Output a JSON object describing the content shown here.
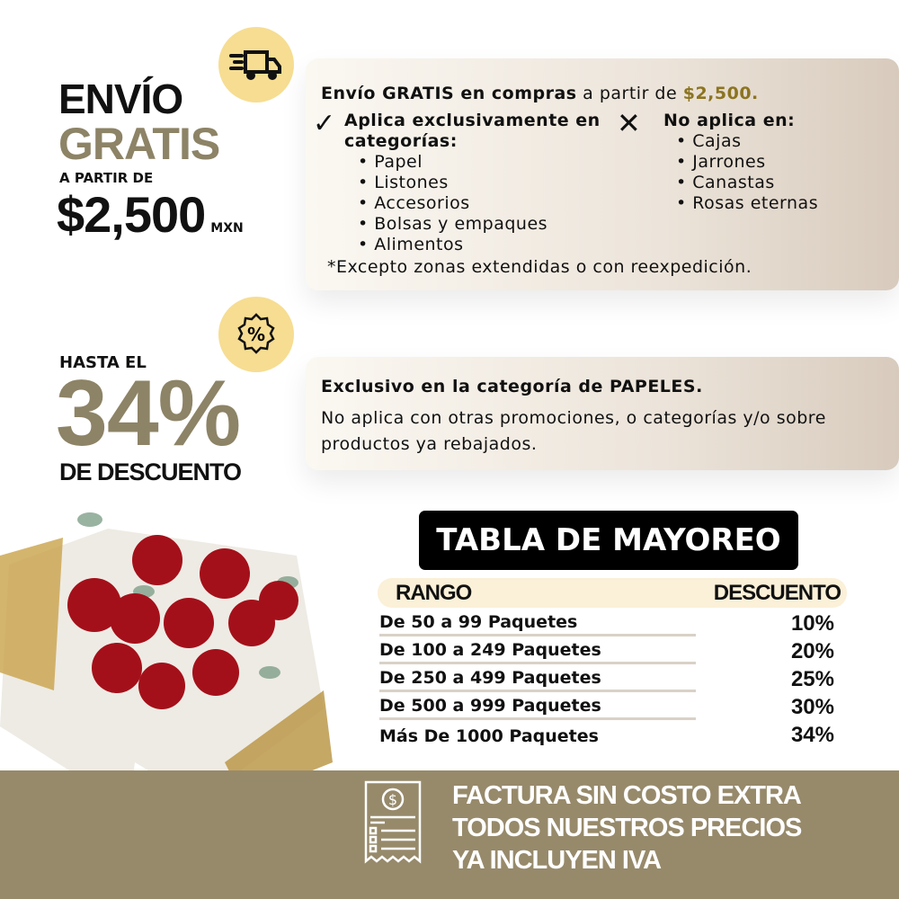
{
  "shipping": {
    "headline_1": "ENVÍO",
    "headline_2": "GRATIS",
    "from_label": "A PARTIR DE",
    "amount": "$2,500",
    "currency": "MXN",
    "icon": "delivery-truck-icon",
    "intro_bold": "Envío GRATIS en compras",
    "intro_regular": " a partir de ",
    "intro_amount": "$2,500.",
    "applies_title": "Aplica exclusivamente en categorías:",
    "applies_items": [
      "Papel",
      "Listones",
      "Accesorios",
      "Bolsas y empaques",
      "Alimentos"
    ],
    "not_applies_title": "No aplica en:",
    "not_applies_items": [
      "Cajas",
      "Jarrones",
      "Canastas",
      "Rosas eternas"
    ],
    "footnote": "*Excepto zonas extendidas o con reexpedición."
  },
  "discount": {
    "prefix": "HASTA EL",
    "value": "34%",
    "suffix": "DE DESCUENTO",
    "icon": "percent-badge-icon",
    "line_bold": "Exclusivo en la categoría de PAPELES.",
    "line_regular": "No aplica con otras promociones, o categorías y/o sobre productos ya rebajados."
  },
  "wholesale": {
    "title": "TABLA DE MAYOREO",
    "headers": [
      "RANGO",
      "DESCUENTO"
    ],
    "rows": [
      {
        "range": "De 50 a 99 Paquetes",
        "discount": "10%"
      },
      {
        "range": "De 100 a 249 Paquetes",
        "discount": "20%"
      },
      {
        "range": "De 250 a 499 Paquetes",
        "discount": "25%"
      },
      {
        "range": "De 500 a 999 Paquetes",
        "discount": "30%"
      },
      {
        "range": "Más De  1000 Paquetes",
        "discount": "34%"
      }
    ]
  },
  "invoice": {
    "icon": "receipt-dollar-icon",
    "lines": [
      "FACTURA SIN COSTO EXTRA",
      "TODOS NUESTROS PRECIOS",
      "YA INCLUYEN IVA"
    ]
  },
  "colors": {
    "gold": "#8d8366",
    "band": "#978a6b",
    "icon_bg": "#f6dd92",
    "header_bg": "#fbf0d8"
  }
}
